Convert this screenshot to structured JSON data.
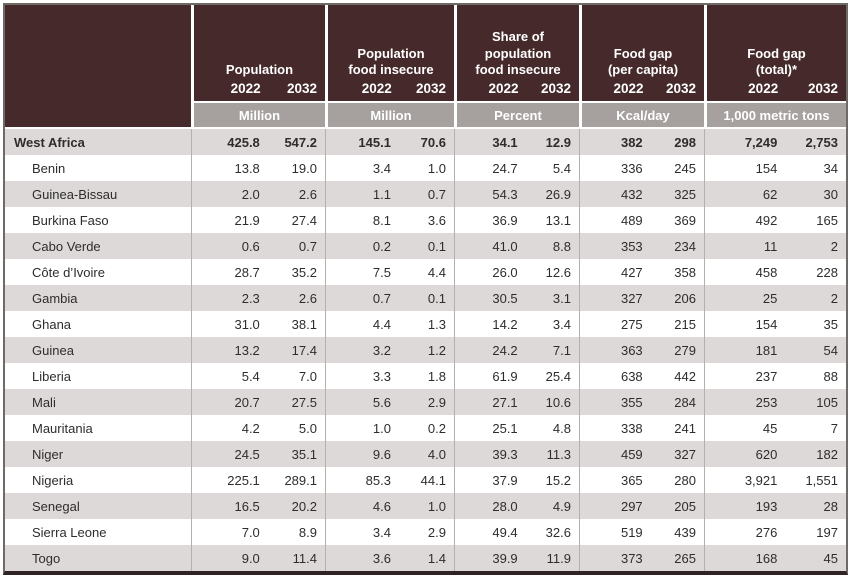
{
  "chart_data": {
    "type": "table",
    "years": [
      "2022",
      "2032"
    ],
    "column_groups": [
      {
        "label": "Population",
        "unit": "Million"
      },
      {
        "label": "Population\nfood insecure",
        "unit": "Million"
      },
      {
        "label": "Share of\npopulation\nfood insecure",
        "unit": "Percent"
      },
      {
        "label": "Food gap\n(per capita)",
        "unit": "Kcal/day"
      },
      {
        "label": "Food gap\n(total)*",
        "unit": "1,000 metric tons"
      }
    ],
    "rows": [
      {
        "label": "West Africa",
        "is_total": true,
        "values": [
          "425.8",
          "547.2",
          "145.1",
          "70.6",
          "34.1",
          "12.9",
          "382",
          "298",
          "7,249",
          "2,753"
        ]
      },
      {
        "label": "Benin",
        "is_total": false,
        "values": [
          "13.8",
          "19.0",
          "3.4",
          "1.0",
          "24.7",
          "5.4",
          "336",
          "245",
          "154",
          "34"
        ]
      },
      {
        "label": "Guinea-Bissau",
        "is_total": false,
        "values": [
          "2.0",
          "2.6",
          "1.1",
          "0.7",
          "54.3",
          "26.9",
          "432",
          "325",
          "62",
          "30"
        ]
      },
      {
        "label": "Burkina Faso",
        "is_total": false,
        "values": [
          "21.9",
          "27.4",
          "8.1",
          "3.6",
          "36.9",
          "13.1",
          "489",
          "369",
          "492",
          "165"
        ]
      },
      {
        "label": "Cabo Verde",
        "is_total": false,
        "values": [
          "0.6",
          "0.7",
          "0.2",
          "0.1",
          "41.0",
          "8.8",
          "353",
          "234",
          "11",
          "2"
        ]
      },
      {
        "label": "Côte d’Ivoire",
        "is_total": false,
        "values": [
          "28.7",
          "35.2",
          "7.5",
          "4.4",
          "26.0",
          "12.6",
          "427",
          "358",
          "458",
          "228"
        ]
      },
      {
        "label": "Gambia",
        "is_total": false,
        "values": [
          "2.3",
          "2.6",
          "0.7",
          "0.1",
          "30.5",
          "3.1",
          "327",
          "206",
          "25",
          "2"
        ]
      },
      {
        "label": "Ghana",
        "is_total": false,
        "values": [
          "31.0",
          "38.1",
          "4.4",
          "1.3",
          "14.2",
          "3.4",
          "275",
          "215",
          "154",
          "35"
        ]
      },
      {
        "label": "Guinea",
        "is_total": false,
        "values": [
          "13.2",
          "17.4",
          "3.2",
          "1.2",
          "24.2",
          "7.1",
          "363",
          "279",
          "181",
          "54"
        ]
      },
      {
        "label": "Liberia",
        "is_total": false,
        "values": [
          "5.4",
          "7.0",
          "3.3",
          "1.8",
          "61.9",
          "25.4",
          "638",
          "442",
          "237",
          "88"
        ]
      },
      {
        "label": "Mali",
        "is_total": false,
        "values": [
          "20.7",
          "27.5",
          "5.6",
          "2.9",
          "27.1",
          "10.6",
          "355",
          "284",
          "253",
          "105"
        ]
      },
      {
        "label": "Mauritania",
        "is_total": false,
        "values": [
          "4.2",
          "5.0",
          "1.0",
          "0.2",
          "25.1",
          "4.8",
          "338",
          "241",
          "45",
          "7"
        ]
      },
      {
        "label": "Niger",
        "is_total": false,
        "values": [
          "24.5",
          "35.1",
          "9.6",
          "4.0",
          "39.3",
          "11.3",
          "459",
          "327",
          "620",
          "182"
        ]
      },
      {
        "label": "Nigeria",
        "is_total": false,
        "values": [
          "225.1",
          "289.1",
          "85.3",
          "44.1",
          "37.9",
          "15.2",
          "365",
          "280",
          "3,921",
          "1,551"
        ]
      },
      {
        "label": "Senegal",
        "is_total": false,
        "values": [
          "16.5",
          "20.2",
          "4.6",
          "1.0",
          "28.0",
          "4.9",
          "297",
          "205",
          "193",
          "28"
        ]
      },
      {
        "label": "Sierra Leone",
        "is_total": false,
        "values": [
          "7.0",
          "8.9",
          "3.4",
          "2.9",
          "49.4",
          "32.6",
          "519",
          "439",
          "276",
          "197"
        ]
      },
      {
        "label": "Togo",
        "is_total": false,
        "values": [
          "9.0",
          "11.4",
          "3.6",
          "1.4",
          "39.9",
          "11.9",
          "373",
          "265",
          "168",
          "45"
        ]
      }
    ]
  },
  "colors": {
    "header_bg": "#462a2b",
    "header_text": "#ffffff",
    "unit_bg": "#a6a09f",
    "stripe": "#dcd9d8",
    "plain": "#ffffff",
    "text": "#2f2d2c",
    "divider": "#b5b0ae",
    "outer": "#6f6a68",
    "bottom": "#2f2324"
  }
}
